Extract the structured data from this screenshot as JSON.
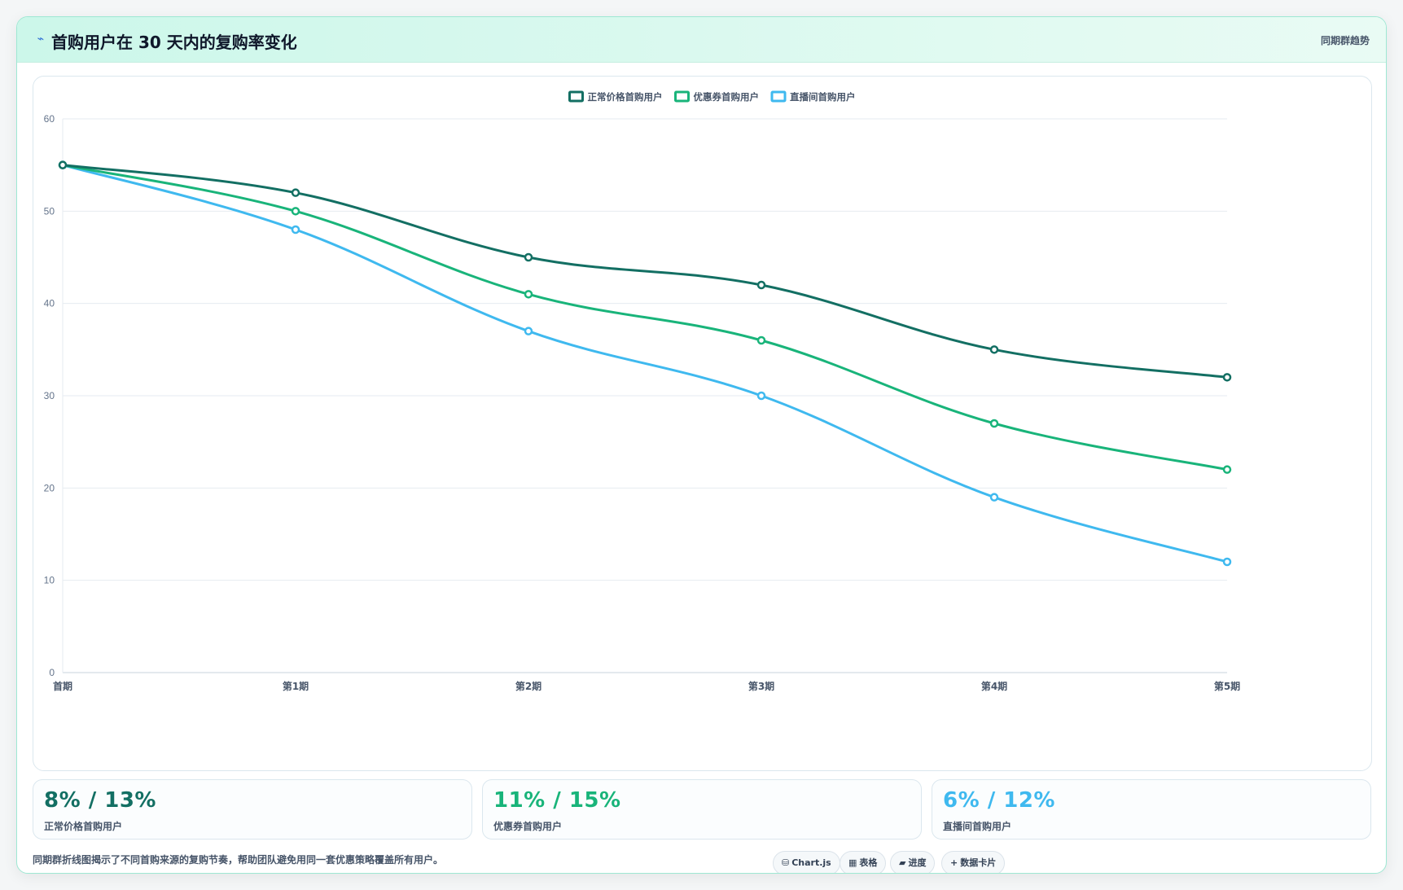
{
  "header": {
    "icon": "trend-icon",
    "title": "首购用户在 30 天内的复购率变化",
    "tag": "同期群趋势"
  },
  "chart_data": {
    "type": "line",
    "categories": [
      "首期",
      "第1期",
      "第2期",
      "第3期",
      "第4期",
      "第5期"
    ],
    "series": [
      {
        "name": "正常价格首购用户",
        "color": "#136f63",
        "values": [
          55,
          52,
          45,
          42,
          35,
          32
        ]
      },
      {
        "name": "优惠券首购用户",
        "color": "#19b47a",
        "values": [
          55,
          50,
          41,
          36,
          27,
          22
        ]
      },
      {
        "name": "直播间首购用户",
        "color": "#3fb9ef",
        "values": [
          55,
          48,
          37,
          30,
          19,
          12
        ]
      }
    ],
    "ylim": [
      0,
      60
    ],
    "yticks": [
      0,
      10,
      20,
      30,
      40,
      50,
      60
    ],
    "grid": true,
    "legend": "top-center",
    "smooth": true
  },
  "kpis": [
    {
      "value": "8% / 13%",
      "label": "正常价格首购用户",
      "color": "#136f63"
    },
    {
      "value": "11% / 15%",
      "label": "优惠券首购用户",
      "color": "#19b47a"
    },
    {
      "value": "6% / 12%",
      "label": "直播间首购用户",
      "color": "#3fb9ef"
    }
  ],
  "footer": {
    "note": "同期群折线图揭示了不同首购来源的复购节奏，帮助团队避免用同一套优惠策略覆盖所有用户。",
    "chips": [
      {
        "icon": "database-icon",
        "glyph": "⛁",
        "label": "Chart.js"
      },
      {
        "icon": "table-icon",
        "glyph": "▦",
        "label": "表格"
      },
      {
        "icon": "progress-icon",
        "glyph": "▰",
        "label": "进度"
      },
      {
        "icon": "plus-icon",
        "glyph": "+",
        "label": "数据卡片"
      }
    ]
  }
}
